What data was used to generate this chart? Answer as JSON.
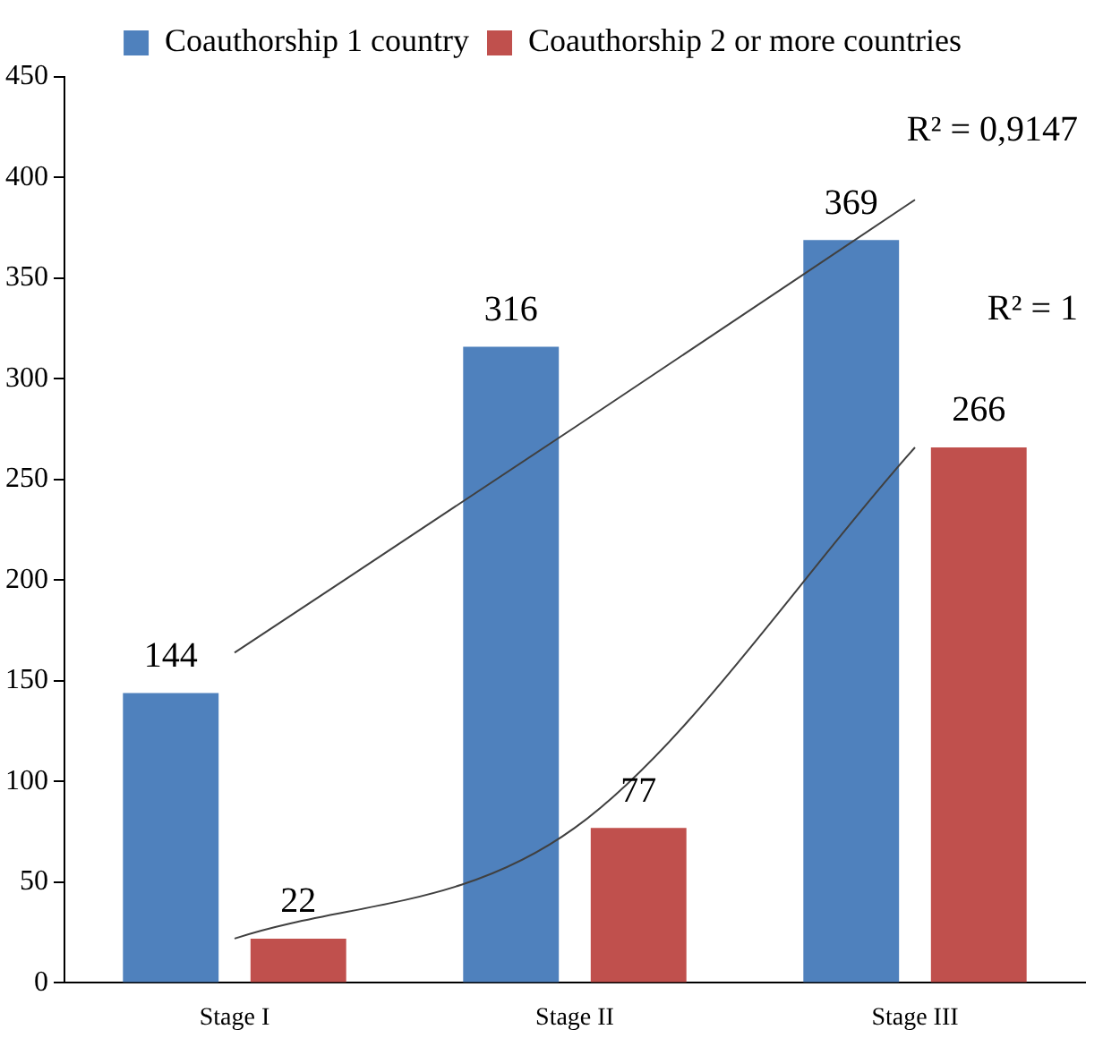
{
  "chart_data": {
    "type": "bar",
    "categories": [
      "Stage I",
      "Stage II",
      "Stage III"
    ],
    "series": [
      {
        "name": "Coauthorship 1 country",
        "color": "#4f81bd",
        "values": [
          144,
          316,
          369
        ],
        "value_labels": [
          "144",
          "316",
          "369"
        ]
      },
      {
        "name": "Coauthorship 2 or more countries",
        "color": "#c0504d",
        "values": [
          22,
          77,
          266
        ],
        "value_labels": [
          "22",
          "77",
          "266"
        ]
      },
      {
        "type": "line",
        "color": "#404040",
        "x": [
          "Stage I",
          "Stage II",
          "Stage III"
        ],
        "values": [
          164,
          276,
          389
        ]
      },
      {
        "type": "line",
        "color": "#404040",
        "x": [
          "Stage I",
          "Stage II",
          "Stage III"
        ],
        "values": [
          22,
          77,
          266
        ]
      }
    ],
    "ylim": [
      0,
      450
    ],
    "yticks": [
      0,
      50,
      100,
      150,
      200,
      250,
      300,
      350,
      400,
      450
    ],
    "legend": "top",
    "grid": false,
    "marker": "none",
    "annotations": [
      "R² = 0,9147",
      "R² = 1"
    ]
  }
}
